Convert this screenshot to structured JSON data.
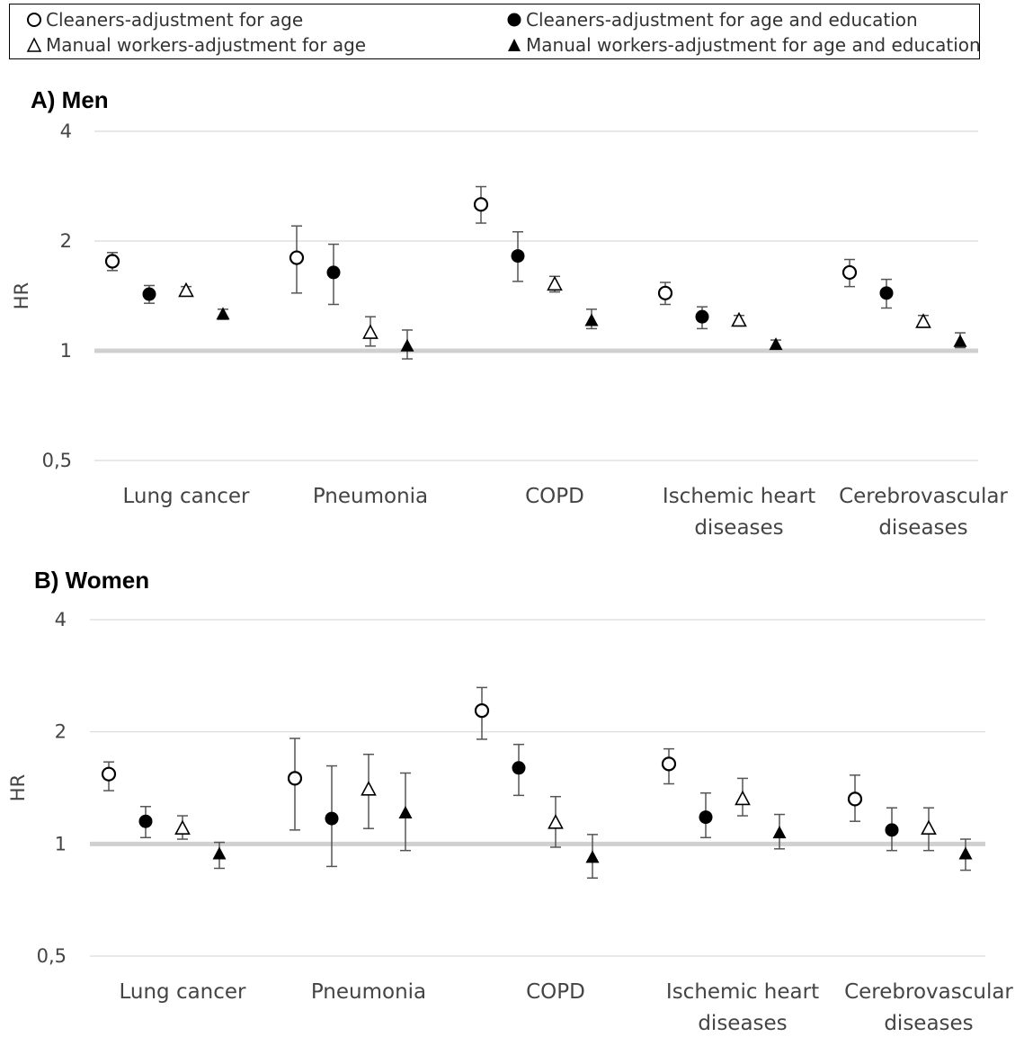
{
  "legend": [
    {
      "label": "Cleaners-adjustment for age",
      "marker": "circle-open"
    },
    {
      "label": "Cleaners-adjustment for age and education",
      "marker": "circle-filled"
    },
    {
      "label": "Manual workers-adjustment for age",
      "marker": "triangle-open"
    },
    {
      "label": "Manual workers-adjustment for age and education",
      "marker": "triangle-filled"
    }
  ],
  "chart_data": [
    {
      "type": "scatter",
      "title": "A) Men",
      "ylabel": "HR",
      "yscale": "log2",
      "ylim": [
        0.5,
        4
      ],
      "yticks": [
        {
          "value": 0.5,
          "label": "0,5"
        },
        {
          "value": 1,
          "label": "1"
        },
        {
          "value": 2,
          "label": "2"
        },
        {
          "value": 4,
          "label": "4"
        }
      ],
      "reference_line": 1,
      "categories": [
        [
          "Lung cancer"
        ],
        [
          "Pneumonia"
        ],
        [
          "COPD"
        ],
        [
          "Ischemic heart",
          "diseases"
        ],
        [
          "Cerebrovascular",
          "diseases"
        ]
      ],
      "series": [
        {
          "name": "Cleaners-adjustment for age",
          "marker": "circle-open",
          "values": [
            1.76,
            1.8,
            2.52,
            1.44,
            1.64
          ],
          "ci_low": [
            1.66,
            1.44,
            2.24,
            1.34,
            1.5
          ],
          "ci_high": [
            1.86,
            2.2,
            2.82,
            1.54,
            1.78
          ]
        },
        {
          "name": "Cleaners-adjustment for age and education",
          "marker": "circle-filled",
          "values": [
            1.43,
            1.64,
            1.82,
            1.24,
            1.44
          ],
          "ci_low": [
            1.35,
            1.34,
            1.55,
            1.15,
            1.31
          ],
          "ci_high": [
            1.51,
            1.96,
            2.12,
            1.32,
            1.57
          ]
        },
        {
          "name": "Manual workers-adjustment for age",
          "marker": "triangle-open",
          "values": [
            1.46,
            1.12,
            1.52,
            1.21,
            1.2
          ],
          "ci_low": [
            1.42,
            1.03,
            1.45,
            1.17,
            1.16
          ],
          "ci_high": [
            1.5,
            1.24,
            1.6,
            1.25,
            1.25
          ]
        },
        {
          "name": "Manual workers-adjustment for age and education",
          "marker": "triangle-filled",
          "values": [
            1.26,
            1.03,
            1.21,
            1.04,
            1.06
          ],
          "ci_low": [
            1.22,
            0.95,
            1.15,
            1.01,
            1.02
          ],
          "ci_high": [
            1.3,
            1.14,
            1.3,
            1.07,
            1.12
          ]
        }
      ]
    },
    {
      "type": "scatter",
      "title": "B) Women",
      "ylabel": "HR",
      "yscale": "log2",
      "ylim": [
        0.5,
        4
      ],
      "yticks": [
        {
          "value": 0.5,
          "label": "0,5"
        },
        {
          "value": 1,
          "label": "1"
        },
        {
          "value": 2,
          "label": "2"
        },
        {
          "value": 4,
          "label": "4"
        }
      ],
      "reference_line": 1,
      "categories": [
        [
          "Lung cancer"
        ],
        [
          "Pneumonia"
        ],
        [
          "COPD"
        ],
        [
          "Ischemic heart",
          "diseases"
        ],
        [
          "Cerebrovascular",
          "diseases"
        ]
      ],
      "series": [
        {
          "name": "Cleaners-adjustment for age",
          "marker": "circle-open",
          "values": [
            1.54,
            1.5,
            2.28,
            1.64,
            1.32
          ],
          "ci_low": [
            1.39,
            1.09,
            1.91,
            1.45,
            1.15
          ],
          "ci_high": [
            1.66,
            1.92,
            2.63,
            1.8,
            1.53
          ]
        },
        {
          "name": "Cleaners-adjustment for age and education",
          "marker": "circle-filled",
          "values": [
            1.15,
            1.17,
            1.6,
            1.18,
            1.09
          ],
          "ci_low": [
            1.04,
            0.87,
            1.35,
            1.04,
            0.96
          ],
          "ci_high": [
            1.26,
            1.62,
            1.85,
            1.37,
            1.25
          ]
        },
        {
          "name": "Manual workers-adjustment for age",
          "marker": "triangle-open",
          "values": [
            1.1,
            1.4,
            1.14,
            1.32,
            1.1
          ],
          "ci_low": [
            1.03,
            1.1,
            0.98,
            1.19,
            0.96
          ],
          "ci_high": [
            1.19,
            1.74,
            1.34,
            1.5,
            1.25
          ]
        },
        {
          "name": "Manual workers-adjustment for age and education",
          "marker": "triangle-filled",
          "values": [
            0.94,
            1.21,
            0.92,
            1.07,
            0.94
          ],
          "ci_low": [
            0.86,
            0.96,
            0.81,
            0.97,
            0.85
          ],
          "ci_high": [
            1.01,
            1.55,
            1.06,
            1.2,
            1.03
          ]
        }
      ]
    }
  ]
}
